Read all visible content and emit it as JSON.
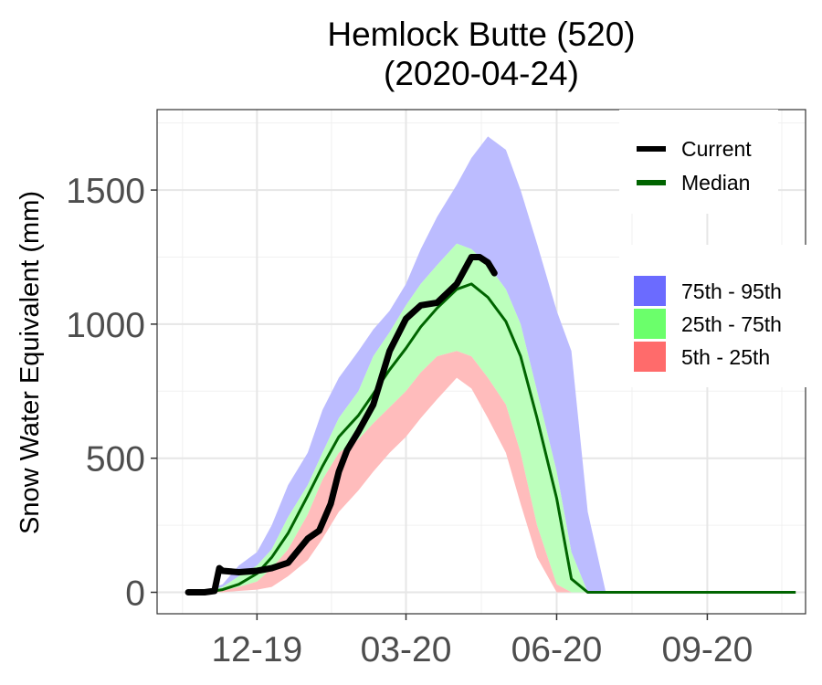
{
  "chart_data": {
    "type": "area",
    "title": "Hemlock Butte (520)",
    "subtitle": "(2020-04-24)",
    "xlabel": "",
    "ylabel": "Snow Water Equivalent (mm)",
    "ylim": [
      -80,
      1800
    ],
    "xlim": [
      "2019-10-01",
      "2020-10-31"
    ],
    "x_ticks": [
      "12-19",
      "03-20",
      "06-20",
      "09-20"
    ],
    "x_tick_dates": [
      "2019-12-01",
      "2020-03-01",
      "2020-06-01",
      "2020-09-01"
    ],
    "y_ticks": [
      0,
      500,
      1000,
      1500
    ],
    "grid": true,
    "legend_position": "right",
    "colors": {
      "p75_95": "#bcbcff",
      "p25_75": "#bcffbc",
      "p5_25": "#ffbcbc",
      "median": "#006400",
      "current": "#000000",
      "legend_p75_95": "#6b6bff",
      "legend_p25_75": "#6bff6b",
      "legend_p5_25": "#ff6b6b"
    },
    "legend": {
      "lines": [
        {
          "label": "Current",
          "color": "#000000"
        },
        {
          "label": "Median",
          "color": "#006400"
        }
      ],
      "bands": [
        {
          "label": "75th - 95th",
          "color": "#6b6bff"
        },
        {
          "label": "25th - 75th",
          "color": "#6bff6b"
        },
        {
          "label": "5th - 25th",
          "color": "#ff6b6b"
        }
      ]
    },
    "x": [
      "2019-10-20",
      "2019-10-30",
      "2019-11-10",
      "2019-11-20",
      "2019-12-01",
      "2019-12-10",
      "2019-12-20",
      "2020-01-01",
      "2020-01-10",
      "2020-01-20",
      "2020-02-01",
      "2020-02-10",
      "2020-02-20",
      "2020-03-01",
      "2020-03-10",
      "2020-03-20",
      "2020-04-01",
      "2020-04-10",
      "2020-04-20",
      "2020-05-01",
      "2020-05-10",
      "2020-05-20",
      "2020-06-01",
      "2020-06-10",
      "2020-06-20",
      "2020-07-01",
      "2020-07-10",
      "2020-07-20",
      "2020-08-01",
      "2020-08-15",
      "2020-09-01",
      "2020-09-15",
      "2020-10-01",
      "2020-10-15",
      "2020-10-25"
    ],
    "p95": [
      0,
      5,
      30,
      100,
      150,
      250,
      400,
      520,
      680,
      800,
      900,
      980,
      1050,
      1150,
      1280,
      1400,
      1520,
      1620,
      1700,
      1650,
      1500,
      1300,
      1050,
      900,
      300,
      0,
      0,
      0,
      0,
      0,
      0,
      0,
      0,
      0,
      0
    ],
    "p75": [
      0,
      2,
      20,
      60,
      100,
      160,
      280,
      400,
      520,
      650,
      750,
      880,
      970,
      1070,
      1150,
      1220,
      1300,
      1280,
      1220,
      1130,
      1000,
      750,
      450,
      150,
      0,
      0,
      0,
      0,
      0,
      0,
      0,
      0,
      0,
      0,
      0
    ],
    "p25": [
      0,
      0,
      5,
      20,
      40,
      90,
      160,
      290,
      420,
      520,
      570,
      630,
      690,
      750,
      820,
      880,
      900,
      880,
      800,
      700,
      520,
      250,
      30,
      0,
      0,
      0,
      0,
      0,
      0,
      0,
      0,
      0,
      0,
      0,
      0
    ],
    "p5": [
      0,
      0,
      0,
      5,
      10,
      20,
      60,
      120,
      200,
      300,
      380,
      450,
      520,
      580,
      650,
      720,
      800,
      760,
      650,
      520,
      330,
      130,
      0,
      0,
      0,
      0,
      0,
      0,
      0,
      0,
      0,
      0,
      0,
      0,
      0
    ],
    "median": [
      0,
      0,
      10,
      30,
      70,
      130,
      220,
      360,
      470,
      580,
      660,
      740,
      830,
      910,
      990,
      1060,
      1130,
      1150,
      1100,
      1010,
      880,
      650,
      350,
      50,
      0,
      0,
      0,
      0,
      0,
      0,
      0,
      0,
      0,
      0,
      0
    ],
    "current": {
      "x": [
        "2019-10-20",
        "2019-10-25",
        "2019-10-30",
        "2019-11-05",
        "2019-11-08",
        "2019-11-10",
        "2019-11-20",
        "2019-12-01",
        "2019-12-10",
        "2019-12-20",
        "2020-01-01",
        "2020-01-08",
        "2020-01-15",
        "2020-01-20",
        "2020-01-25",
        "2020-02-01",
        "2020-02-10",
        "2020-02-20",
        "2020-03-01",
        "2020-03-10",
        "2020-03-20",
        "2020-04-01",
        "2020-04-10",
        "2020-04-15",
        "2020-04-20",
        "2020-04-24"
      ],
      "y": [
        0,
        0,
        0,
        5,
        90,
        80,
        75,
        80,
        90,
        110,
        200,
        230,
        330,
        450,
        530,
        600,
        700,
        900,
        1020,
        1070,
        1080,
        1150,
        1250,
        1250,
        1230,
        1190
      ]
    }
  }
}
